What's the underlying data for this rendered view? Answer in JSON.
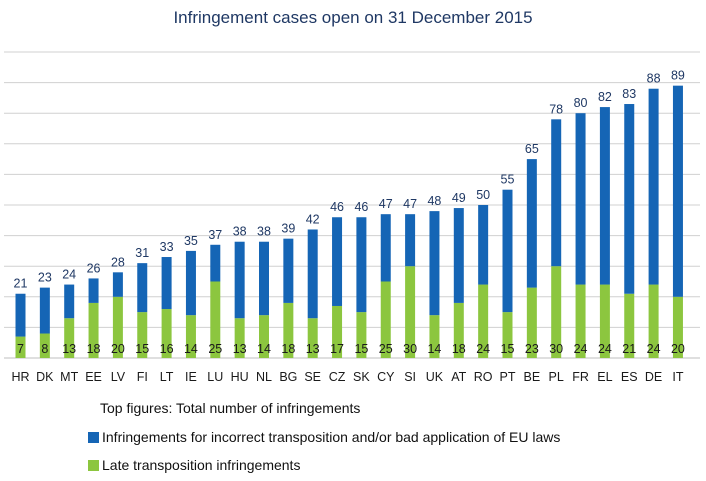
{
  "chart_data": {
    "type": "bar",
    "stacked": true,
    "title": "Infringement cases open on 31 December 2015",
    "categories": [
      "HR",
      "DK",
      "MT",
      "EE",
      "LV",
      "FI",
      "LT",
      "IE",
      "LU",
      "HU",
      "NL",
      "BG",
      "SE",
      "CZ",
      "SK",
      "CY",
      "SI",
      "UK",
      "AT",
      "RO",
      "PT",
      "BE",
      "PL",
      "FR",
      "EL",
      "ES",
      "DE",
      "IT"
    ],
    "series": [
      {
        "name": "Late transposition infringements",
        "color": "#8cc63f",
        "values": [
          7,
          8,
          13,
          18,
          20,
          15,
          16,
          14,
          25,
          13,
          14,
          18,
          13,
          17,
          15,
          25,
          30,
          14,
          18,
          24,
          15,
          23,
          30,
          24,
          24,
          21,
          24,
          20
        ]
      },
      {
        "name": "Infringements for incorrect transposition and/or bad application of EU laws",
        "color": "#1565b5",
        "values": [
          14,
          15,
          11,
          8,
          8,
          16,
          17,
          21,
          12,
          25,
          24,
          21,
          29,
          29,
          31,
          22,
          17,
          34,
          31,
          26,
          40,
          42,
          48,
          56,
          58,
          62,
          64,
          69
        ]
      }
    ],
    "totals": [
      21,
      23,
      24,
      26,
      28,
      31,
      33,
      35,
      37,
      38,
      38,
      39,
      42,
      46,
      46,
      47,
      47,
      48,
      49,
      50,
      55,
      65,
      78,
      80,
      82,
      83,
      88,
      89
    ],
    "ylim": [
      0,
      100
    ],
    "grid": true,
    "xlabel": "",
    "ylabel": ""
  },
  "legend": {
    "note": "Top figures: Total number of infringements",
    "blue_label": "Infringements for incorrect transposition and/or bad application of EU laws",
    "green_label": "Late transposition infringements"
  }
}
